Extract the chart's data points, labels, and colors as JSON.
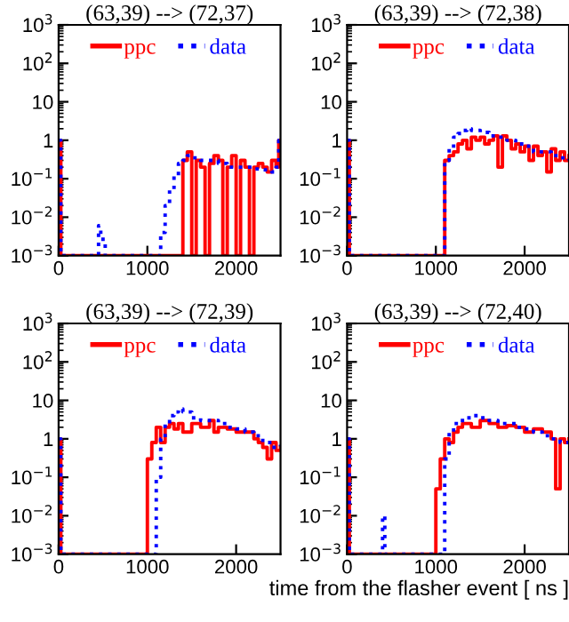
{
  "chart_data": [
    {
      "type": "step",
      "title": "(63,39) --> (72,37)",
      "log": "y",
      "xlim": [
        0,
        2500
      ],
      "xticks": [
        0,
        1000,
        2000
      ],
      "ylim": [
        0.001,
        1000
      ],
      "yticks": [
        {
          "value": 0.001,
          "label": "10$^{−3}$"
        },
        {
          "value": 0.01,
          "label": "10$^{−2}$"
        },
        {
          "value": 0.1,
          "label": "10$^{−1}$"
        },
        1,
        10,
        {
          "value": 100,
          "label": "10$^{2}$"
        },
        {
          "value": 1000,
          "label": "10$^{3}$"
        }
      ],
      "legend": "top",
      "line_style": "solid",
      "marker": "none",
      "series": [
        {
          "name": "ppc",
          "color": "#ff0000",
          "x": [
            0,
            25,
            1400,
            1450,
            1500,
            1550,
            1600,
            1650,
            1700,
            1750,
            1800,
            1850,
            1900,
            1950,
            2000,
            2050,
            2100,
            2150,
            2200,
            2250,
            2300,
            2350,
            2400,
            2450,
            2480,
            2500
          ],
          "values": [
            1,
            0.001,
            0.3,
            0.5,
            0.001,
            0.3,
            0.2,
            0.001,
            0.25,
            0.4,
            0.3,
            0.001,
            0.2,
            0.4,
            0.001,
            0.3,
            0.2,
            0.001,
            0.2,
            0.25,
            0.2,
            0.15,
            0.3,
            0.2,
            1,
            1
          ]
        },
        {
          "name": "data",
          "color": "#0000ff",
          "line_style": "dotted",
          "x": [
            0,
            25,
            450,
            475,
            500,
            525,
            1100,
            1150,
            1200,
            1250,
            1300,
            1350,
            1400,
            1450,
            1500,
            1600,
            1700,
            1800,
            1900,
            2000,
            2100,
            2200,
            2300,
            2400,
            2450,
            2480,
            2500
          ],
          "values": [
            1,
            0.001,
            0.006,
            0.003,
            0.002,
            0.001,
            0.001,
            0.004,
            0.02,
            0.05,
            0.12,
            0.25,
            0.3,
            0.4,
            0.35,
            0.3,
            0.3,
            0.25,
            0.2,
            0.2,
            0.2,
            0.18,
            0.17,
            0.15,
            0.2,
            1,
            1
          ]
        }
      ]
    },
    {
      "type": "step",
      "title": "(63,39) --> (72,38)",
      "log": "y",
      "xlim": [
        0,
        2500
      ],
      "xticks": [
        0,
        1000,
        2000
      ],
      "ylim": [
        0.001,
        1000
      ],
      "yticks": [
        {
          "value": 0.001,
          "label": "10$^{−3}$"
        },
        {
          "value": 0.01,
          "label": "10$^{−2}$"
        },
        {
          "value": 0.1,
          "label": "10$^{−1}$"
        },
        1,
        10,
        {
          "value": 100,
          "label": "10$^{2}$"
        },
        {
          "value": 1000,
          "label": "10$^{3}$"
        }
      ],
      "legend": "top",
      "line_style": "solid",
      "marker": "none",
      "series": [
        {
          "name": "ppc",
          "color": "#ff0000",
          "x": [
            0,
            25,
            1100,
            1150,
            1200,
            1250,
            1300,
            1350,
            1400,
            1450,
            1500,
            1550,
            1600,
            1650,
            1700,
            1750,
            1800,
            1850,
            1900,
            1950,
            2000,
            2050,
            2100,
            2150,
            2200,
            2250,
            2300,
            2350,
            2400,
            2450,
            2500
          ],
          "values": [
            1,
            0.001,
            0.3,
            0.4,
            0.5,
            0.8,
            1,
            0.6,
            1.2,
            1,
            1.2,
            0.8,
            1,
            1.3,
            0.2,
            1.3,
            1,
            0.6,
            0.8,
            0.5,
            0.7,
            0.3,
            0.7,
            0.4,
            0.5,
            0.15,
            0.6,
            0.3,
            0.5,
            0.3,
            0.4
          ]
        },
        {
          "name": "data",
          "color": "#0000ff",
          "line_style": "dotted",
          "x": [
            0,
            25,
            1050,
            1100,
            1150,
            1200,
            1250,
            1300,
            1350,
            1400,
            1500,
            1600,
            1700,
            1800,
            1900,
            2000,
            2100,
            2200,
            2300,
            2400,
            2500
          ],
          "values": [
            1,
            0.001,
            0.001,
            0.3,
            0.6,
            1.2,
            1.5,
            1.8,
            2,
            1.8,
            1.6,
            1.3,
            1.2,
            1,
            0.8,
            0.7,
            0.5,
            0.5,
            0.4,
            0.35,
            0.3
          ]
        }
      ]
    },
    {
      "type": "step",
      "title": "(63,39) --> (72,39)",
      "log": "y",
      "xlim": [
        0,
        2500
      ],
      "xticks": [
        0,
        1000,
        2000
      ],
      "ylim": [
        0.001,
        1000
      ],
      "yticks": [
        {
          "value": 0.001,
          "label": "10$^{−3}$"
        },
        {
          "value": 0.01,
          "label": "10$^{−2}$"
        },
        {
          "value": 0.1,
          "label": "10$^{−1}$"
        },
        1,
        10,
        {
          "value": 100,
          "label": "10$^{2}$"
        },
        {
          "value": 1000,
          "label": "10$^{3}$"
        }
      ],
      "legend": "top",
      "line_style": "solid",
      "marker": "none",
      "series": [
        {
          "name": "ppc",
          "color": "#ff0000",
          "x": [
            0,
            25,
            1000,
            1050,
            1100,
            1150,
            1200,
            1250,
            1300,
            1350,
            1400,
            1500,
            1600,
            1700,
            1750,
            1800,
            1900,
            2000,
            2100,
            2200,
            2250,
            2300,
            2350,
            2400,
            2450,
            2500
          ],
          "values": [
            1,
            0.001,
            0.3,
            0.8,
            2,
            0.8,
            2,
            2.5,
            1.8,
            2.5,
            1.5,
            2.5,
            2,
            3,
            1.5,
            2,
            1.8,
            1.5,
            1.5,
            1,
            0.8,
            0.6,
            0.3,
            0.8,
            0.5,
            0.6
          ]
        },
        {
          "name": "data",
          "color": "#0000ff",
          "line_style": "dotted",
          "x": [
            0,
            25,
            1050,
            1100,
            1150,
            1200,
            1250,
            1300,
            1350,
            1400,
            1500,
            1600,
            1700,
            1800,
            1900,
            2000,
            2100,
            2200,
            2300,
            2400,
            2500
          ],
          "values": [
            1,
            0.001,
            0.001,
            0.1,
            1,
            2.5,
            4,
            5,
            6,
            5,
            3.5,
            3,
            3,
            2.5,
            2,
            1.8,
            1.5,
            1.2,
            0.8,
            0.6,
            0.7
          ]
        }
      ]
    },
    {
      "type": "step",
      "title": "(63,39) --> (72,40)",
      "xlabel": "time from the flasher event [ ns ]",
      "log": "y",
      "xlim": [
        0,
        2500
      ],
      "xticks": [
        0,
        1000,
        2000
      ],
      "ylim": [
        0.001,
        1000
      ],
      "yticks": [
        {
          "value": 0.001,
          "label": "10$^{−3}$"
        },
        {
          "value": 0.01,
          "label": "10$^{−2}$"
        },
        {
          "value": 0.1,
          "label": "10$^{−1}$"
        },
        1,
        10,
        {
          "value": 100,
          "label": "10$^{2}$"
        },
        {
          "value": 1000,
          "label": "10$^{3}$"
        }
      ],
      "legend": "top",
      "line_style": "solid",
      "marker": "none",
      "series": [
        {
          "name": "ppc",
          "color": "#ff0000",
          "x": [
            0,
            25,
            1000,
            1050,
            1100,
            1150,
            1200,
            1250,
            1300,
            1400,
            1500,
            1600,
            1700,
            1800,
            1900,
            2000,
            2100,
            2200,
            2300,
            2350,
            2400,
            2450,
            2500
          ],
          "values": [
            1,
            0.001,
            0.05,
            0.3,
            1,
            0.8,
            1.5,
            2,
            2.5,
            2,
            3,
            2.5,
            2,
            2.2,
            2,
            1.5,
            1.8,
            1.5,
            1,
            0.05,
            1,
            0.8,
            1
          ]
        },
        {
          "name": "data",
          "color": "#0000ff",
          "line_style": "dotted",
          "x": [
            0,
            25,
            400,
            425,
            1050,
            1100,
            1150,
            1200,
            1300,
            1400,
            1500,
            1600,
            1700,
            1800,
            1900,
            2000,
            2100,
            2200,
            2300,
            2400,
            2500
          ],
          "values": [
            1,
            0.001,
            0.01,
            0.001,
            0.001,
            0.3,
            1.5,
            2.5,
            3.5,
            4,
            3.5,
            3,
            2.5,
            2.5,
            2,
            1.8,
            1.5,
            1.2,
            1,
            0.8,
            0.7
          ]
        }
      ]
    }
  ]
}
